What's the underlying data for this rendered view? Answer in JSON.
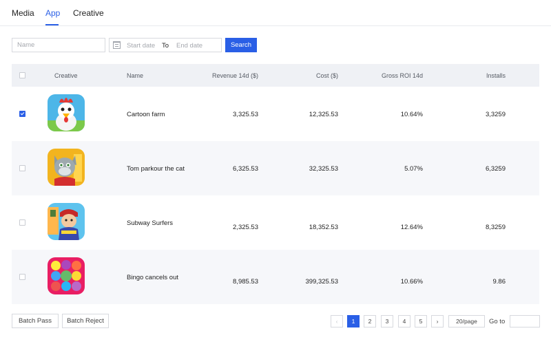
{
  "tabs": [
    {
      "label": "Media",
      "active": false
    },
    {
      "label": "App",
      "active": true
    },
    {
      "label": "Creative",
      "active": false
    }
  ],
  "filters": {
    "name_placeholder": "Name",
    "start_placeholder": "Start date",
    "to_label": "To",
    "end_placeholder": "End date",
    "search_label": "Search"
  },
  "table": {
    "headers": {
      "creative": "Creative",
      "name": "Name",
      "revenue": "Revenue 14d ($)",
      "cost": "Cost ($)",
      "roi": "Gross ROI 14d",
      "installs": "Installs"
    },
    "rows": [
      {
        "checked": true,
        "icon": "rooster-app-icon",
        "name": "Cartoon farm",
        "revenue": "3,325.53",
        "cost": "12,325.53",
        "roi": "10.64%",
        "installs": "3,3259"
      },
      {
        "checked": false,
        "icon": "cat-app-icon",
        "name": "Tom parkour the cat",
        "revenue": "6,325.53",
        "cost": "32,325.53",
        "roi": "5.07%",
        "installs": "6,3259"
      },
      {
        "checked": false,
        "icon": "subway-surfer-app-icon",
        "name": "Subway Surfers",
        "revenue": "2,325.53",
        "cost": "18,352.53",
        "roi": "12.64%",
        "installs": "8,3259"
      },
      {
        "checked": false,
        "icon": "candy-match-app-icon",
        "name": "Bingo cancels out",
        "revenue": "8,985.53",
        "cost": "399,325.53",
        "roi": "10.66%",
        "installs": "9.86"
      }
    ]
  },
  "footer": {
    "batch_pass": "Batch Pass",
    "batch_reject": "Batch Reject",
    "prev_glyph": "‹",
    "next_glyph": "›",
    "pages": [
      "1",
      "2",
      "3",
      "4",
      "5"
    ],
    "current_page": "1",
    "per_page": "20/page",
    "goto_label": "Go to"
  },
  "colors": {
    "accent": "#2a5fe6",
    "header_bg": "#eff1f5",
    "alt_row_bg": "#f6f7fa"
  }
}
